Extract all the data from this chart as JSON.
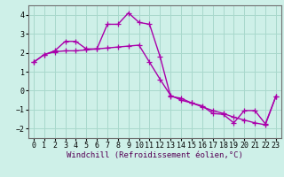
{
  "xlabel": "Windchill (Refroidissement éolien,°C)",
  "bg_color": "#cef0e8",
  "line_color": "#aa00aa",
  "grid_color": "#a8d8cc",
  "x_values": [
    0,
    1,
    2,
    3,
    4,
    5,
    6,
    7,
    8,
    9,
    10,
    11,
    12,
    13,
    14,
    15,
    16,
    17,
    18,
    19,
    20,
    21,
    22,
    23
  ],
  "y_line1": [
    1.5,
    1.9,
    2.1,
    2.6,
    2.6,
    2.2,
    2.2,
    3.5,
    3.5,
    4.1,
    3.6,
    3.5,
    1.8,
    -0.3,
    -0.4,
    -0.65,
    -0.8,
    -1.2,
    -1.25,
    -1.7,
    -1.05,
    -1.05,
    -1.75,
    -0.3
  ],
  "y_line2": [
    1.5,
    1.9,
    2.05,
    2.1,
    2.1,
    2.15,
    2.2,
    2.25,
    2.3,
    2.35,
    2.4,
    1.5,
    0.6,
    -0.25,
    -0.5,
    -0.65,
    -0.85,
    -1.05,
    -1.2,
    -1.4,
    -1.55,
    -1.7,
    -1.8,
    -0.3
  ],
  "ylim": [
    -2.5,
    4.5
  ],
  "xlim": [
    -0.5,
    23.5
  ],
  "yticks": [
    -2,
    -1,
    0,
    1,
    2,
    3,
    4
  ],
  "xticks": [
    0,
    1,
    2,
    3,
    4,
    5,
    6,
    7,
    8,
    9,
    10,
    11,
    12,
    13,
    14,
    15,
    16,
    17,
    18,
    19,
    20,
    21,
    22,
    23
  ],
  "marker": "+",
  "markersize": 4,
  "linewidth": 1.0,
  "tick_fontsize": 6.0,
  "xlabel_fontsize": 6.5
}
